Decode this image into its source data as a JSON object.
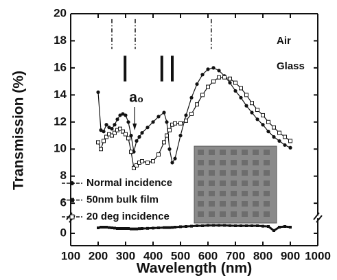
{
  "chart_data": {
    "type": "line",
    "xlabel": "Wavelength (nm)",
    "ylabel": "Transmission (%)",
    "x": [
      200,
      210,
      220,
      230,
      240,
      250,
      260,
      270,
      280,
      290,
      300,
      310,
      320,
      330,
      340,
      350,
      360,
      380,
      400,
      420,
      440,
      450,
      460,
      470,
      480,
      500,
      520,
      540,
      560,
      580,
      600,
      620,
      640,
      660,
      680,
      700,
      720,
      740,
      760,
      780,
      800,
      820,
      840,
      860,
      880,
      900
    ],
    "series": [
      {
        "name": "Normal incidence",
        "color": "#111111",
        "marker": "circle",
        "values": [
          14.2,
          11.4,
          11.3,
          11.8,
          11.6,
          11.5,
          11.8,
          12.2,
          12.5,
          12.6,
          12.5,
          12.0,
          11.0,
          9.8,
          10.6,
          10.9,
          11.2,
          11.6,
          12.0,
          12.4,
          12.7,
          12.0,
          10.0,
          9.0,
          9.3,
          11.0,
          12.5,
          13.8,
          14.8,
          15.5,
          15.9,
          16.0,
          15.8,
          15.4,
          14.9,
          14.3,
          13.8,
          13.2,
          12.7,
          12.2,
          11.8,
          11.3,
          10.9,
          10.6,
          10.3,
          10.1
        ]
      },
      {
        "name": "50nm bulk film",
        "color": "#111111",
        "marker": "square",
        "values": [
          0.4,
          0.45,
          0.45,
          0.45,
          0.42,
          0.4,
          0.38,
          0.35,
          0.35,
          0.35,
          0.35,
          0.35,
          0.32,
          0.32,
          0.32,
          0.34,
          0.35,
          0.36,
          0.38,
          0.4,
          0.42,
          0.42,
          0.42,
          0.43,
          0.45,
          0.48,
          0.5,
          0.52,
          0.55,
          0.55,
          0.58,
          0.58,
          0.58,
          0.58,
          0.56,
          0.55,
          0.55,
          0.55,
          0.55,
          0.55,
          0.52,
          0.5,
          0.2,
          0.45,
          0.5,
          0.45
        ]
      },
      {
        "name": "20 deg incidence",
        "color": "#111111",
        "marker": "open-square",
        "values": [
          10.5,
          10.0,
          10.6,
          10.9,
          11.1,
          11.0,
          11.2,
          11.4,
          11.5,
          11.3,
          11.1,
          10.8,
          9.8,
          8.6,
          8.8,
          9.0,
          9.1,
          9.0,
          9.1,
          9.6,
          10.5,
          11.0,
          11.4,
          11.8,
          11.9,
          11.9,
          12.1,
          12.6,
          13.3,
          14.0,
          14.6,
          15.0,
          15.3,
          15.3,
          15.2,
          14.9,
          14.5,
          14.0,
          13.4,
          12.9,
          12.5,
          12.0,
          11.6,
          11.2,
          10.9,
          10.6
        ]
      }
    ],
    "xlim": [
      100,
      1000
    ],
    "xticks": [
      100,
      200,
      300,
      400,
      500,
      600,
      700,
      800,
      900,
      1000
    ],
    "ylim": [
      -0.9,
      20
    ],
    "y_break": [
      1,
      5.5
    ],
    "yticks": [
      0,
      6,
      8,
      10,
      12,
      14,
      16,
      18,
      20
    ],
    "legend": "lower left",
    "annotations": [
      {
        "label": "Air",
        "x": [
          250,
          335,
          612
        ]
      },
      {
        "label": "Glass",
        "x": [
          298,
          432,
          470
        ]
      },
      {
        "label": "a₀",
        "x": [
          333
        ]
      }
    ]
  }
}
